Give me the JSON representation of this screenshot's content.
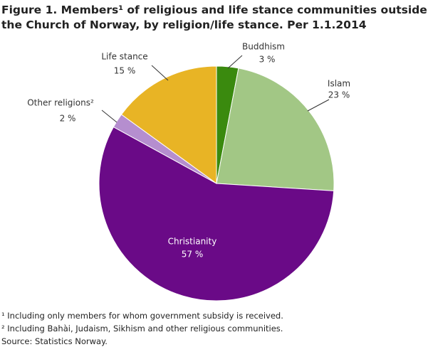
{
  "chart_data": {
    "type": "pie",
    "title": "Figure 1. Members¹ of religious and life stance communities outside the Church of Norway, by religion/life stance. Per 1.1.2014",
    "categories": [
      "Buddhism",
      "Islam",
      "Christianity",
      "Other religions²",
      "Life stance"
    ],
    "values": [
      3,
      23,
      57,
      2,
      15
    ],
    "value_labels": [
      "3 %",
      "23 %",
      "57 %",
      "2 %",
      "15 %"
    ],
    "colors": [
      "#3a8a0e",
      "#a2c785",
      "#6a0a87",
      "#b58ecf",
      "#e8b425"
    ],
    "footnotes": [
      "¹ Including only members for whom government subsidy is received.",
      "² Including Bahài, Judaism, Sikhism and other religious communities.",
      "Source: Statistics Norway."
    ]
  }
}
